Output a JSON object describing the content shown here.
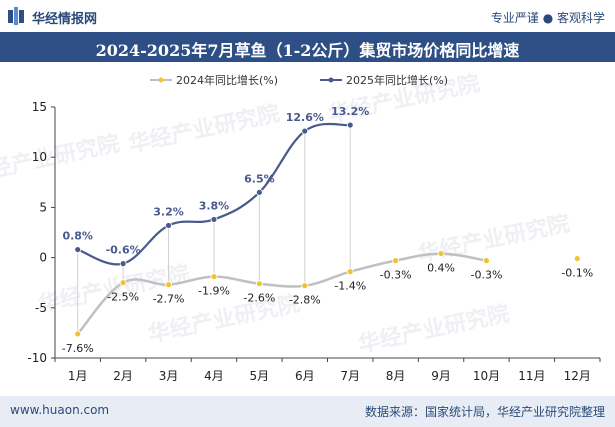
{
  "header": {
    "brand": "华经情报网",
    "tagline": "专业严谨 ● 客观科学"
  },
  "title": "2024-2025年7月草鱼（1-2公斤）集贸市场价格同比增速",
  "footer": {
    "site": "www.huaon.com",
    "source": "数据来源：国家统计局，华经产业研究院整理"
  },
  "watermark": "华经产业研究院",
  "chart_data": {
    "type": "line",
    "title": "2024-2025年7月草鱼（1-2公斤）集贸市场价格同比增速",
    "categories": [
      "1月",
      "2月",
      "3月",
      "4月",
      "5月",
      "6月",
      "7月",
      "8月",
      "9月",
      "10月",
      "11月",
      "12月"
    ],
    "ylim": [
      -10,
      15
    ],
    "yticks": [
      15,
      10,
      5,
      0,
      -5,
      -10
    ],
    "ytick_labels": [
      "15",
      "10",
      "5",
      "0",
      "-5",
      "-10"
    ],
    "series": [
      {
        "name": "2024年同比增长(%)",
        "color": "#c0c0c0",
        "marker_color": "#f2c230",
        "values": [
          -7.6,
          -2.5,
          -2.7,
          -1.9,
          -2.6,
          -2.8,
          -1.4,
          -0.3,
          0.4,
          -0.3,
          null,
          -0.1
        ],
        "labels": [
          "-7.6%",
          "-2.5%",
          "-2.7%",
          "-1.9%",
          "-2.6%",
          "-2.8%",
          "-1.4%",
          "-0.3%",
          "0.4%",
          "-0.3%",
          "",
          "-0.1%"
        ]
      },
      {
        "name": "2025年同比增长(%)",
        "color": "#4a5a8e",
        "marker_color": "#4a5a8e",
        "values": [
          0.8,
          -0.6,
          3.2,
          3.8,
          6.5,
          12.6,
          13.2,
          null,
          null,
          null,
          null,
          null
        ],
        "labels": [
          "0.8%",
          "-0.6%",
          "3.2%",
          "3.8%",
          "6.5%",
          "12.6%",
          "13.2%",
          "",
          "",
          "",
          "",
          ""
        ]
      }
    ],
    "legend": "top-left"
  }
}
